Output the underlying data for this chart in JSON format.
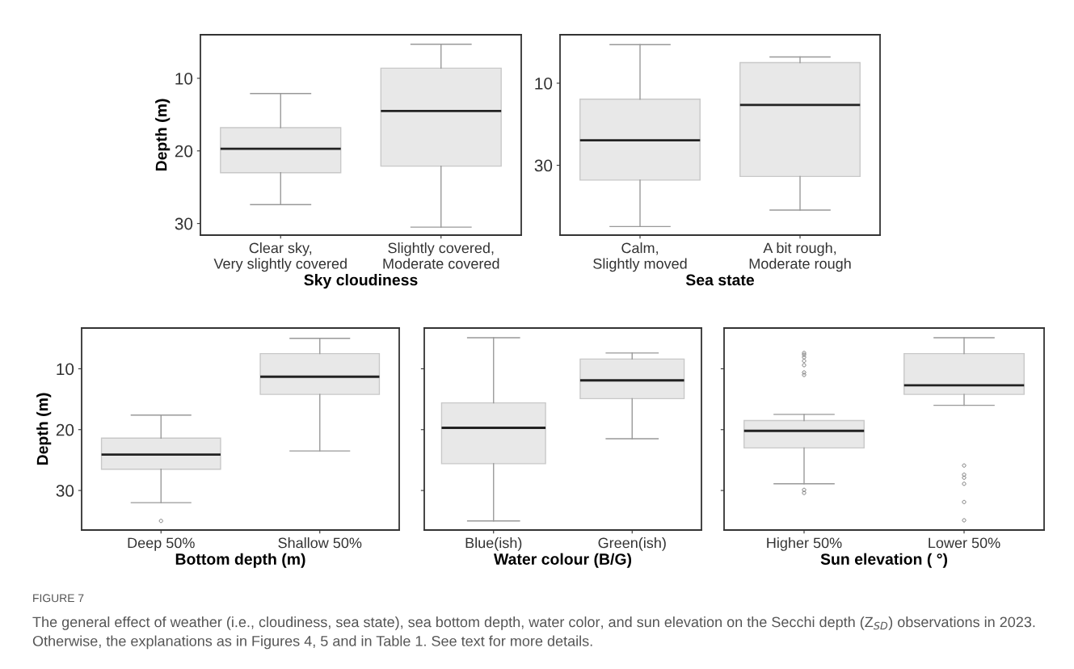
{
  "chart_data": [
    {
      "type": "box",
      "xlabel": "Sky cloudiness",
      "ylabel": "Depth (m)",
      "categories": [
        "Clear sky,\nVery slightly covered",
        "Slightly covered,\nModerate covered"
      ],
      "ylim": [
        31.6,
        4
      ],
      "yticks": [
        10,
        20,
        30
      ],
      "grid": false,
      "color": "#e8e8e8",
      "boxes": [
        {
          "low": 12.1,
          "q1": 16.8,
          "median": 19.7,
          "q3": 23.0,
          "high": 27.4
        },
        {
          "low": 5.3,
          "q1": 8.6,
          "median": 14.5,
          "q3": 22.1,
          "high": 30.5
        }
      ]
    },
    {
      "type": "box",
      "xlabel": "Sea state",
      "categories": [
        "Calm,\nSlightly moved",
        "A bit rough,\nModerate rough"
      ],
      "ylim": [
        47,
        -1.8
      ],
      "yticks": [
        10,
        30
      ],
      "grid": false,
      "color": "#e8e8e8",
      "boxes": [
        {
          "low": 0.6,
          "q1": 13.9,
          "median": 23.9,
          "q3": 33.6,
          "high": 44.9
        },
        {
          "low": 3.6,
          "q1": 5.0,
          "median": 15.3,
          "q3": 32.7,
          "high": 40.9
        }
      ]
    },
    {
      "type": "box",
      "xlabel": "Bottom depth (m)",
      "ylabel": "Depth (m)",
      "categories": [
        "Deep 50%",
        "Shallow 50%"
      ],
      "ylim": [
        36.5,
        3.3
      ],
      "yticks": [
        10,
        20,
        30
      ],
      "grid": false,
      "color": "#e8e8e8",
      "boxes": [
        {
          "low": 17.6,
          "q1": 21.4,
          "median": 24.1,
          "q3": 26.5,
          "high": 32.0,
          "outliers": [
            35.0
          ]
        },
        {
          "low": 5.0,
          "q1": 7.5,
          "median": 11.3,
          "q3": 14.2,
          "high": 23.5
        }
      ]
    },
    {
      "type": "box",
      "xlabel": "Water colour (B/G)",
      "categories": [
        "Blue(ish)",
        "Green(ish)"
      ],
      "ylim": [
        36.5,
        3.3
      ],
      "yticks": [
        10,
        20,
        30
      ],
      "tick_labels": "x",
      "grid": false,
      "color": "#e8e8e8",
      "boxes": [
        {
          "low": 4.9,
          "q1": 15.6,
          "median": 19.7,
          "q3": 25.6,
          "high": 35.0
        },
        {
          "low": 7.4,
          "q1": 8.4,
          "median": 11.9,
          "q3": 14.9,
          "high": 21.5
        }
      ]
    },
    {
      "type": "box",
      "xlabel": "Sun elevation ( °)",
      "categories": [
        "Higher 50%",
        "Lower 50%"
      ],
      "ylim": [
        36.5,
        3.3
      ],
      "yticks": [
        10,
        20,
        30
      ],
      "tick_labels": "x",
      "grid": false,
      "color": "#e8e8e8",
      "boxes": [
        {
          "low": 17.5,
          "q1": 18.5,
          "median": 20.2,
          "q3": 23.0,
          "high": 28.9,
          "outliers": [
            7.4,
            7.7,
            8.1,
            8.7,
            9.4,
            10.6,
            11.0,
            29.9,
            30.4
          ]
        },
        {
          "low": 4.9,
          "q1": 7.5,
          "median": 12.7,
          "q3": 14.2,
          "high": 16.0,
          "outliers": [
            25.9,
            27.4,
            27.9,
            28.9,
            31.9,
            34.9
          ]
        }
      ],
      "annotations": [
        "FIGURE 7",
        "The general effect of weather (i.e., cloudiness, sea state), sea bottom depth, water color, and sun elevation on the Secchi depth (Z$_{SD}$) observations in 2023. Otherwise, the explanations as in Figures 4, 5 and in Table 1. See text for more details."
      ]
    }
  ]
}
